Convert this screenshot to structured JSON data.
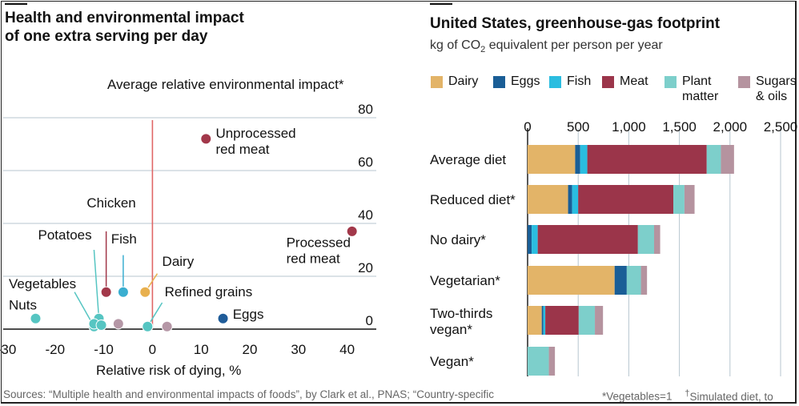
{
  "left_chart": {
    "title_line1": "Health and environmental impact",
    "title_line2": "of one extra serving per day",
    "ylabel": "Average relative environmental impact*",
    "xlabel": "Relative risk of dying, %",
    "colors": {
      "grid": "#b7c6cf",
      "zero_line": "#e06666",
      "red": "#a2384a",
      "blue": "#3aaed0",
      "teal": "#56c5c2",
      "yellow": "#e8b04e",
      "navy": "#1f5c99",
      "mauve": "#b597a6"
    }
  },
  "right_chart": {
    "title": "United States, greenhouse-gas footprint",
    "subtitle_pre": "kg of CO",
    "subtitle_sub": "2",
    "subtitle_post": " equivalent per person per year"
  },
  "legend": [
    {
      "label": "Dairy",
      "color": "#e3b468"
    },
    {
      "label": "Eggs",
      "color": "#1a5e96"
    },
    {
      "label": "Fish",
      "color": "#2bbde0"
    },
    {
      "label": "Meat",
      "color": "#9b354a"
    },
    {
      "label": "Plant",
      "label2": "matter",
      "color": "#7dcfcb"
    },
    {
      "label": "Sugars",
      "label2": "& oils",
      "color": "#b5939f"
    }
  ],
  "footer": {
    "sources": "Sources: “Multiple health and environmental impacts of foods”, by Clark et al., PNAS; “Country-specific",
    "note_vegetables": "*Vegetables=1",
    "note_dagger": "†",
    "note_simulated": "Simulated diet, to"
  },
  "chart_data": [
    {
      "type": "scatter",
      "title": "Health and environmental impact of one extra serving per day",
      "xlabel": "Relative risk of dying, %",
      "ylabel": "Average relative environmental impact*",
      "xlim": [
        -30,
        45
      ],
      "ylim": [
        0,
        80
      ],
      "xticks": [
        -30,
        -20,
        -10,
        0,
        10,
        20,
        30,
        40
      ],
      "yticks": [
        0,
        20,
        40,
        60,
        80
      ],
      "grid": true,
      "points": [
        {
          "label": "Unprocessed red meat",
          "line1": "Unprocessed",
          "line2": "red meat",
          "x": 11,
          "y": 72,
          "color": "#a2384a",
          "label_x": 13,
          "label_y": 72.5,
          "callout": false
        },
        {
          "label": "Processed red meat",
          "line1": "Processed",
          "line2": "red meat",
          "x": 41,
          "y": 37,
          "color": "#a2384a",
          "label_x": 27.5,
          "label_y": 31,
          "callout": false
        },
        {
          "label": "Chicken",
          "line1": "Chicken",
          "x": -9.5,
          "y": 14,
          "color": "#a2384a",
          "label_x": -13.5,
          "label_y": 46,
          "callout": true,
          "anchor_x": -9.5,
          "anchor_y": 37
        },
        {
          "label": "Fish",
          "line1": "Fish",
          "x": -6,
          "y": 14,
          "color": "#3aaed0",
          "label_x": -8.5,
          "label_y": 32.5,
          "callout": true,
          "anchor_x": -6,
          "anchor_y": 28
        },
        {
          "label": "Dairy",
          "line1": "Dairy",
          "x": -1.5,
          "y": 14,
          "color": "#e8b04e",
          "label_x": 2,
          "label_y": 24,
          "callout": true,
          "anchor_x": 1,
          "anchor_y": 21
        },
        {
          "label": "Potatoes",
          "line1": "Potatoes",
          "x": -11,
          "y": 4,
          "color": "#56c5c2",
          "label_x": -23.5,
          "label_y": 34,
          "callout": true,
          "anchor_x": -12,
          "anchor_y": 30
        },
        {
          "label": "Vegetables",
          "line1": "Vegetables",
          "x": -12,
          "y": 1,
          "color": "#56c5c2",
          "label_x": -29.5,
          "label_y": 15.5,
          "callout": true,
          "anchor_x": -16,
          "anchor_y": 14
        },
        {
          "label": "Nuts",
          "line1": "Nuts",
          "x": -24,
          "y": 4,
          "color": "#56c5c2",
          "label_x": -29.5,
          "label_y": 7.5,
          "callout": false
        },
        {
          "label": "Refined grains",
          "line1": "Refined grains",
          "x": -1,
          "y": 1,
          "color": "#56c5c2",
          "label_x": 2.5,
          "label_y": 12.5,
          "callout": true,
          "anchor_x": 2,
          "anchor_y": 10
        },
        {
          "label": "Eggs",
          "line1": "Eggs",
          "x": 14.5,
          "y": 4,
          "color": "#1f5c99",
          "label_x": 16.5,
          "label_y": 4,
          "callout": false
        },
        {
          "label": "Sugars & oils (1)",
          "x": -7,
          "y": 2,
          "color": "#b597a6"
        },
        {
          "label": "Sugars & oils (2)",
          "x": 3,
          "y": 1,
          "color": "#b597a6"
        },
        {
          "label": "Other plant (1)",
          "x": -12,
          "y": 2,
          "color": "#56c5c2"
        },
        {
          "label": "Other plant (2)",
          "x": -10.5,
          "y": 1.5,
          "color": "#56c5c2"
        }
      ]
    },
    {
      "type": "bar",
      "orientation": "horizontal",
      "stacked": true,
      "title": "United States, greenhouse-gas footprint",
      "xlim": [
        0,
        2500
      ],
      "xticks": [
        0,
        500,
        1000,
        1500,
        2000,
        2500
      ],
      "xtick_labels": [
        "0",
        "500",
        "1,000",
        "1,500",
        "2,000",
        "2,500"
      ],
      "categories": [
        {
          "label": "Average diet"
        },
        {
          "label": "Reduced diet*"
        },
        {
          "label": "No dairy*"
        },
        {
          "label": "Vegetarian*"
        },
        {
          "label": "Two-thirds",
          "label2": "vegan*"
        },
        {
          "label": "Vegan*"
        }
      ],
      "series": [
        {
          "name": "Dairy",
          "color": "#e3b468",
          "values": [
            470,
            400,
            0,
            860,
            140,
            0
          ]
        },
        {
          "name": "Eggs",
          "color": "#1a5e96",
          "values": [
            50,
            40,
            40,
            120,
            15,
            0
          ]
        },
        {
          "name": "Fish",
          "color": "#2bbde0",
          "values": [
            70,
            60,
            60,
            0,
            20,
            0
          ]
        },
        {
          "name": "Meat",
          "color": "#9b354a",
          "values": [
            1180,
            940,
            990,
            0,
            330,
            0
          ]
        },
        {
          "name": "Plant matter",
          "color": "#7dcfcb",
          "values": [
            140,
            110,
            160,
            140,
            160,
            210
          ]
        },
        {
          "name": "Sugars & oils",
          "color": "#b5939f",
          "values": [
            130,
            100,
            60,
            60,
            80,
            60
          ]
        }
      ]
    }
  ]
}
